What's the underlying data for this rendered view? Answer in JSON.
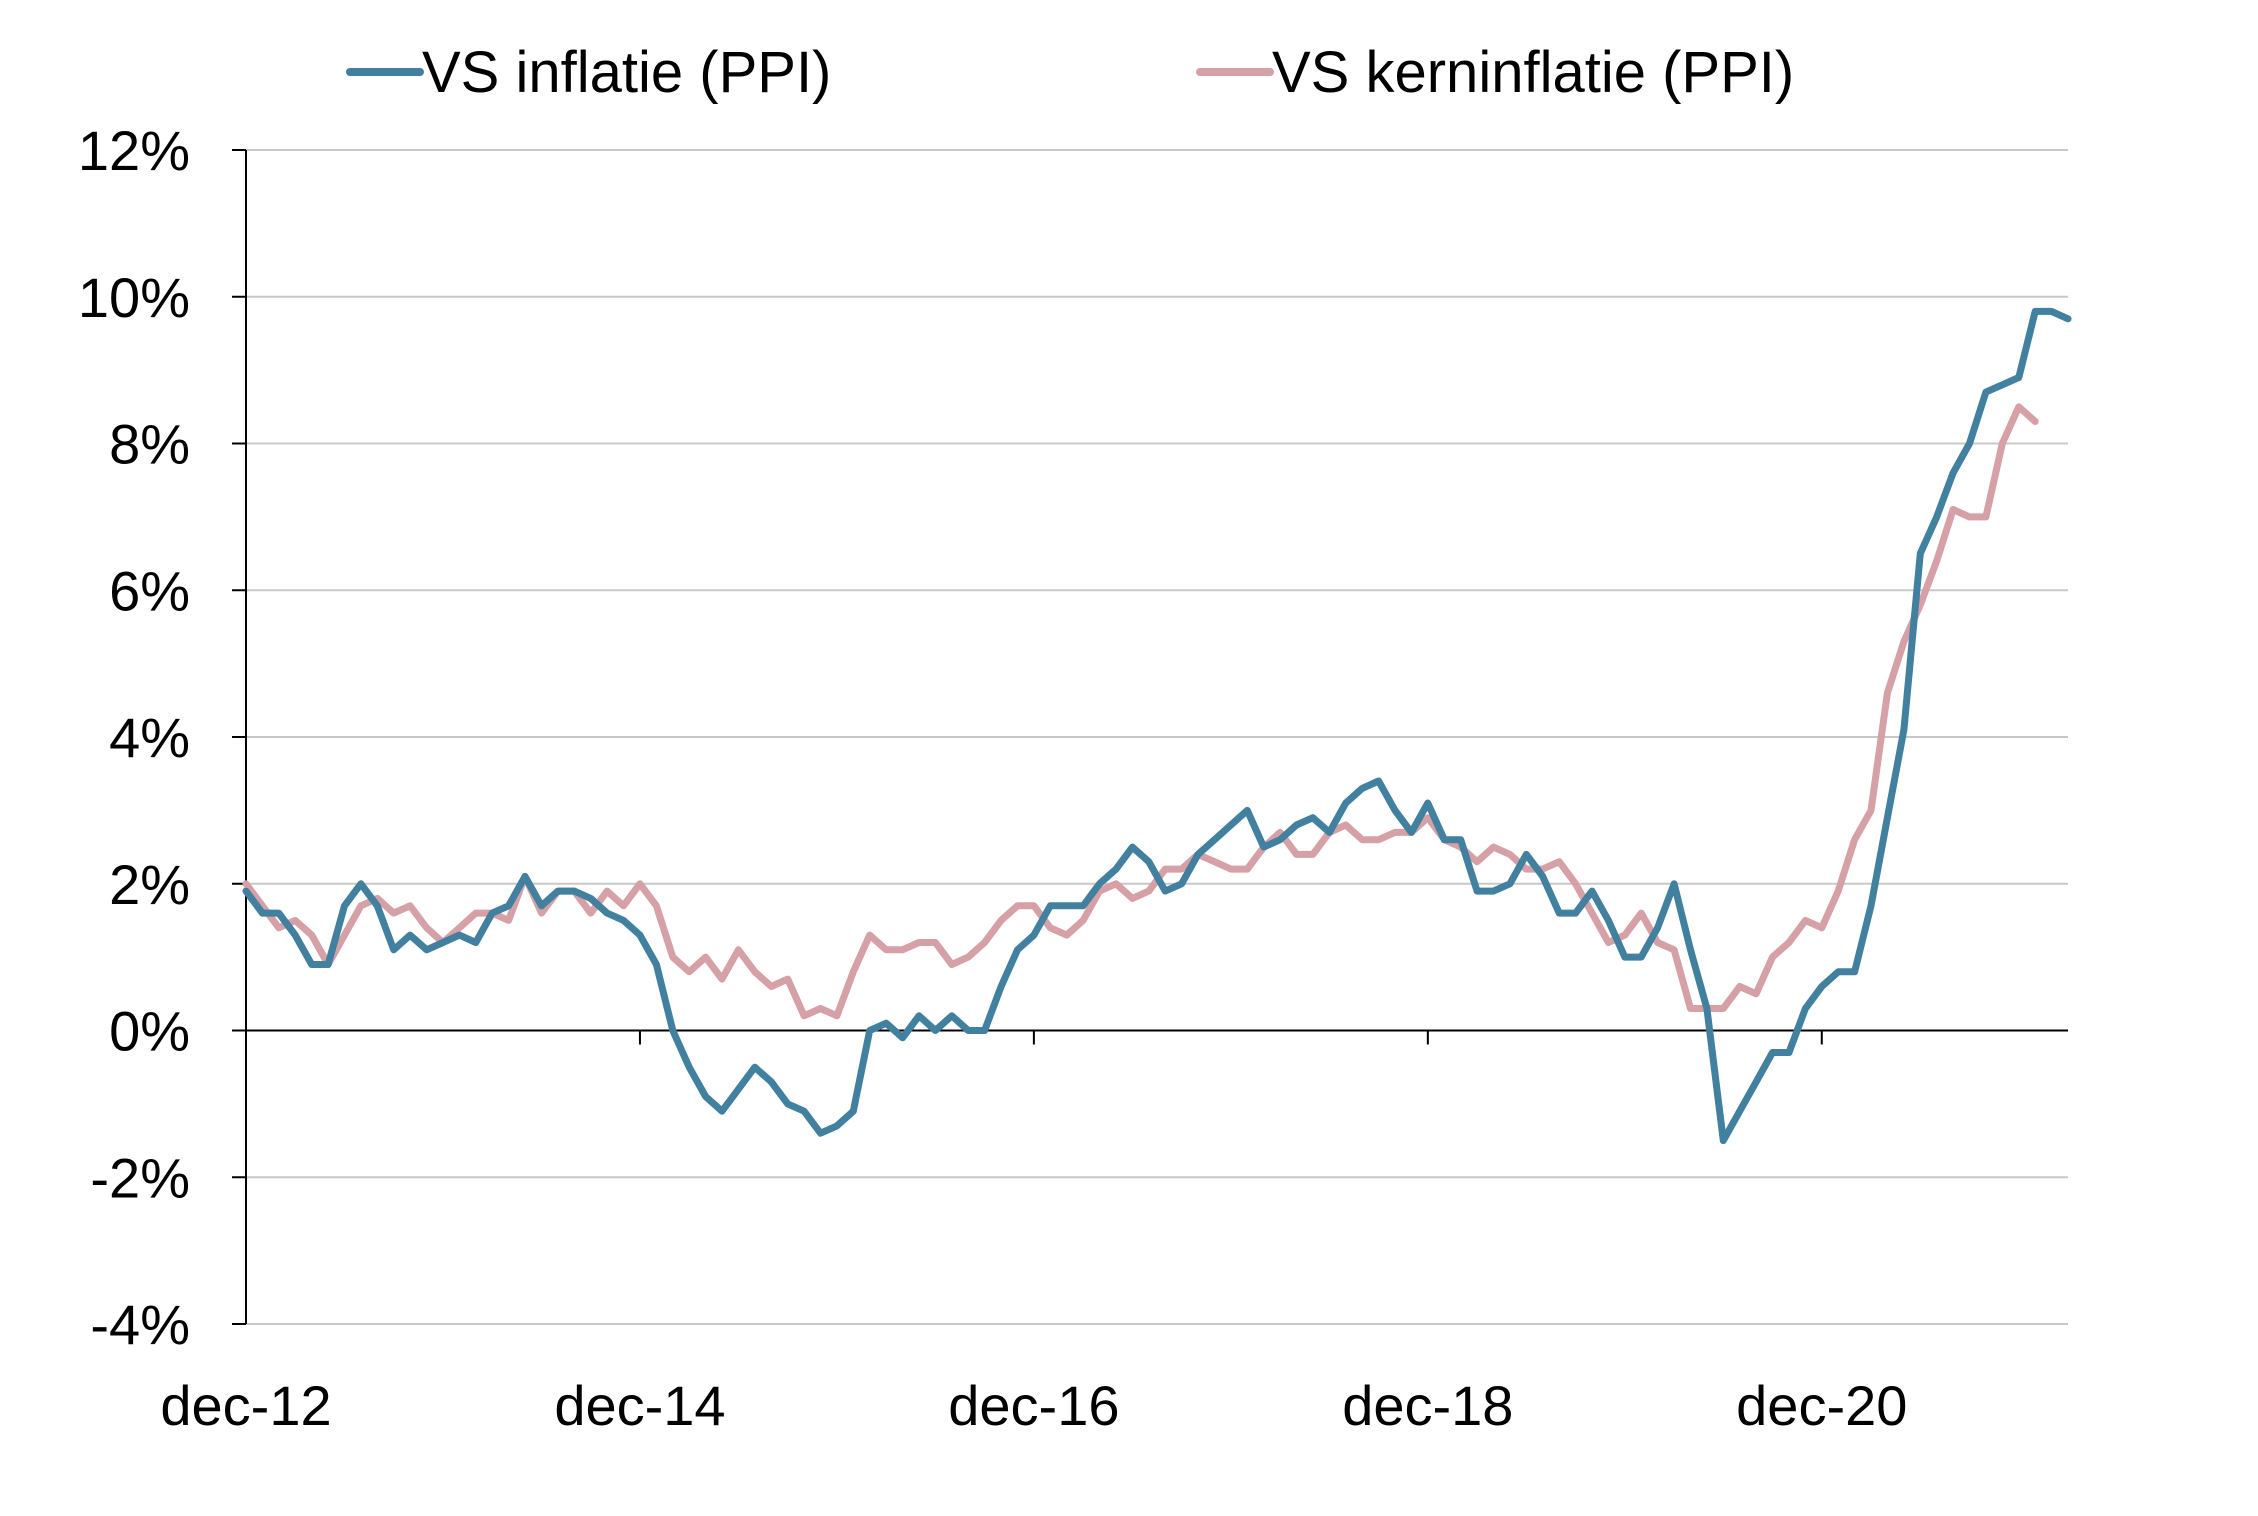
{
  "chart_data": {
    "type": "line",
    "title": "",
    "xlabel": "",
    "ylabel": "",
    "ylim": [
      -4,
      12
    ],
    "y_ticks": [
      -4,
      -2,
      0,
      2,
      4,
      6,
      8,
      10,
      12
    ],
    "y_tick_labels": [
      "-4%",
      "-2%",
      "0%",
      "2%",
      "4%",
      "6%",
      "8%",
      "10%",
      "12%"
    ],
    "x_tick_labels": [
      "dec-12",
      "dec-14",
      "dec-16",
      "dec-18",
      "dec-20"
    ],
    "x_range": [
      "dec-12",
      "jun-22"
    ],
    "grid": "horizontal",
    "legend_position": "top",
    "series": [
      {
        "name": "VS inflatie (PPI)",
        "color": "#41809f",
        "values": [
          1.9,
          1.6,
          1.6,
          1.3,
          0.9,
          0.9,
          1.7,
          2.0,
          1.7,
          1.1,
          1.3,
          1.1,
          1.2,
          1.3,
          1.2,
          1.6,
          1.7,
          2.1,
          1.7,
          1.9,
          1.9,
          1.8,
          1.6,
          1.5,
          1.3,
          0.9,
          0.0,
          -0.5,
          -0.9,
          -1.1,
          -0.8,
          -0.5,
          -0.7,
          -1.0,
          -1.1,
          -1.4,
          -1.3,
          -1.1,
          0.0,
          0.1,
          -0.1,
          0.2,
          0.0,
          0.2,
          0.0,
          0.0,
          0.6,
          1.1,
          1.3,
          1.7,
          1.7,
          1.7,
          2.0,
          2.2,
          2.5,
          2.3,
          1.9,
          2.0,
          2.4,
          2.6,
          2.8,
          3.0,
          2.5,
          2.6,
          2.8,
          2.9,
          2.7,
          3.1,
          3.3,
          3.4,
          3.0,
          2.7,
          3.1,
          2.6,
          2.6,
          1.9,
          1.9,
          2.0,
          2.4,
          2.1,
          1.6,
          1.6,
          1.9,
          1.5,
          1.0,
          1.0,
          1.4,
          2.0,
          1.1,
          0.3,
          -1.5,
          -1.1,
          -0.7,
          -0.3,
          -0.3,
          0.3,
          0.6,
          0.8,
          0.8,
          1.7,
          2.9,
          4.1,
          6.5,
          7.0,
          7.6,
          8.0,
          8.7,
          8.8,
          8.9,
          9.8,
          9.8,
          9.7
        ]
      },
      {
        "name": "VS kerninflatie (PPI)",
        "color": "#d5a0a6",
        "values": [
          2.0,
          1.7,
          1.4,
          1.5,
          1.3,
          0.9,
          1.3,
          1.7,
          1.8,
          1.6,
          1.7,
          1.4,
          1.2,
          1.4,
          1.6,
          1.6,
          1.5,
          2.1,
          1.6,
          1.9,
          1.9,
          1.6,
          1.9,
          1.7,
          2.0,
          1.7,
          1.0,
          0.8,
          1.0,
          0.7,
          1.1,
          0.8,
          0.6,
          0.7,
          0.2,
          0.3,
          0.2,
          0.8,
          1.3,
          1.1,
          1.1,
          1.2,
          1.2,
          0.9,
          1.0,
          1.2,
          1.5,
          1.7,
          1.7,
          1.4,
          1.3,
          1.5,
          1.9,
          2.0,
          1.8,
          1.9,
          2.2,
          2.2,
          2.4,
          2.3,
          2.2,
          2.2,
          2.5,
          2.7,
          2.4,
          2.4,
          2.7,
          2.8,
          2.6,
          2.6,
          2.7,
          2.7,
          2.9,
          2.6,
          2.5,
          2.3,
          2.5,
          2.4,
          2.2,
          2.2,
          2.3,
          2.0,
          1.6,
          1.2,
          1.3,
          1.6,
          1.2,
          1.1,
          0.3,
          0.3,
          0.3,
          0.6,
          0.5,
          1.0,
          1.2,
          1.5,
          1.4,
          1.9,
          2.6,
          3.0,
          4.6,
          5.3,
          5.8,
          6.4,
          7.1,
          7.0,
          7.0,
          8.0,
          8.5,
          8.3
        ]
      }
    ]
  }
}
